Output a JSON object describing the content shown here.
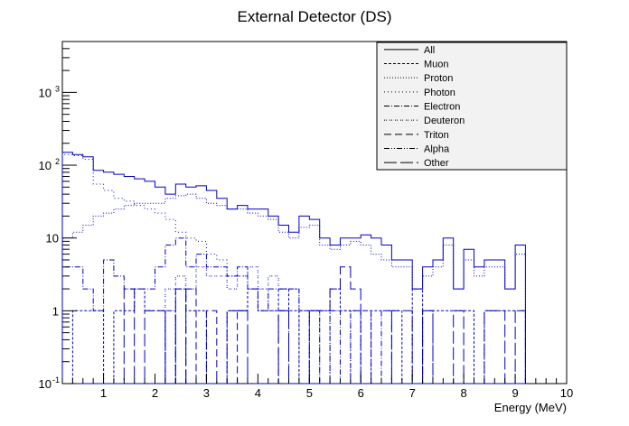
{
  "chart_data": {
    "type": "histogram-step",
    "title": "External Detector (DS)",
    "xlabel": "Energy (MeV)",
    "ylabel": "",
    "xlim": [
      0.2,
      10.0
    ],
    "ylim": [
      0.1,
      5000
    ],
    "yscale": "log",
    "bin_width": 0.2,
    "x_ticks": [
      "1",
      "2",
      "3",
      "4",
      "5",
      "6",
      "7",
      "8",
      "9",
      "10"
    ],
    "y_ticks": [
      {
        "label": "10",
        "sup": "-1",
        "value": 0.1
      },
      {
        "label": "1",
        "sup": "",
        "value": 1
      },
      {
        "label": "10",
        "sup": "",
        "value": 10
      },
      {
        "label": "10",
        "sup": "2",
        "value": 100
      },
      {
        "label": "10",
        "sup": "3",
        "value": 1000
      }
    ],
    "legend_position": "top-right",
    "series": [
      {
        "name": "All",
        "color": "#0000cc",
        "dash": "",
        "values": [
          150,
          140,
          130,
          85,
          80,
          75,
          70,
          65,
          60,
          50,
          40,
          55,
          50,
          52,
          45,
          35,
          25,
          28,
          25,
          25,
          20,
          15,
          12,
          20,
          18,
          10,
          8,
          10,
          10,
          11,
          10,
          8,
          5,
          5,
          2,
          4,
          5,
          10,
          2,
          7,
          4,
          5,
          5,
          2,
          8
        ]
      },
      {
        "name": "Muon",
        "color": "#0000cc",
        "dash": "3,2",
        "values": [
          0.1,
          1,
          1,
          1,
          0.1,
          1,
          1,
          2,
          1,
          1,
          0.1,
          2,
          1,
          1,
          0.1,
          0.1,
          1,
          1,
          2,
          1,
          1,
          2,
          1,
          0.1,
          1,
          1,
          2,
          1,
          1,
          0.1,
          1,
          1,
          1,
          0.1,
          2,
          0.1,
          1,
          1,
          1,
          1,
          0.1,
          1,
          1,
          1,
          1
        ]
      },
      {
        "name": "Proton",
        "color": "#0000cc",
        "dash": "1,2",
        "values": [
          10,
          12,
          15,
          20,
          22,
          25,
          28,
          30,
          30,
          30,
          35,
          38,
          40,
          35,
          30,
          28,
          25,
          25,
          22,
          20,
          18,
          12,
          10,
          14,
          15,
          8,
          7,
          8,
          9,
          8,
          6,
          5,
          4,
          4,
          2,
          3,
          4,
          8,
          2,
          5,
          3,
          4,
          4,
          2,
          6
        ]
      },
      {
        "name": "Photon",
        "color": "#0000cc",
        "dash": "1,3",
        "values": [
          140,
          135,
          120,
          55,
          45,
          35,
          32,
          28,
          25,
          22,
          18,
          12,
          10,
          9,
          6,
          5,
          3,
          3,
          2,
          2,
          1,
          1,
          0.1,
          1,
          0.1,
          0.1,
          0.1,
          0.1,
          0.1,
          0.1,
          0.1,
          0.1,
          0.1,
          0.1,
          0.1,
          0.1,
          0.1,
          0.1,
          0.1,
          0.1,
          0.1,
          0.1,
          0.1,
          0.1,
          0.1
        ]
      },
      {
        "name": "Electron",
        "color": "#0000cc",
        "dash": "6,2,1,2",
        "values": [
          4,
          4,
          2,
          1,
          5,
          3,
          2,
          2,
          2,
          4,
          8,
          10,
          4,
          6,
          4,
          4,
          3,
          4,
          2,
          1,
          2,
          2,
          2,
          1,
          1,
          0.1,
          1,
          0.1,
          1,
          1,
          0.1,
          1,
          0.1,
          0.1,
          0.1,
          1,
          0.1,
          0.1,
          0.1,
          0.1,
          0.1,
          0.1,
          0.1,
          0.1,
          0.1
        ]
      },
      {
        "name": "Deuteron",
        "color": "#0000cc",
        "dash": "1,1,1,3",
        "values": [
          0.1,
          0.1,
          0.1,
          0.1,
          0.1,
          0.1,
          0.1,
          0.1,
          0.1,
          0.1,
          2,
          3,
          2,
          4,
          3,
          3,
          2,
          3,
          4,
          2,
          3,
          2,
          2,
          1,
          1,
          0.1,
          1,
          1,
          0.1,
          0.1,
          0.1,
          0.1,
          0.1,
          0.1,
          0.1,
          0.1,
          0.1,
          0.1,
          0.1,
          0.1,
          0.1,
          0.1,
          0.1,
          0.1,
          0.1
        ]
      },
      {
        "name": "Triton",
        "color": "#0000cc",
        "dash": "8,4",
        "values": [
          0.1,
          0.1,
          0.1,
          0.1,
          0.1,
          0.1,
          0.1,
          0.1,
          0.1,
          0.1,
          0.1,
          0.1,
          2,
          0.1,
          1,
          0.1,
          0.1,
          1,
          0.1,
          0.1,
          0.1,
          1,
          0.1,
          0.1,
          0.1,
          0.1,
          0.1,
          0.1,
          0.1,
          0.1,
          0.1,
          0.1,
          0.1,
          0.1,
          0.1,
          0.1,
          0.1,
          0.1,
          0.1,
          0.1,
          0.1,
          0.1,
          0.1,
          0.1,
          0.1
        ]
      },
      {
        "name": "Alpha",
        "color": "#0000cc",
        "dash": "6,2,1,2,1,2",
        "values": [
          0.1,
          0.1,
          0.1,
          0.1,
          0.1,
          0.1,
          0.1,
          0.1,
          0.1,
          0.1,
          1,
          0.1,
          0.1,
          0.1,
          0.1,
          0.1,
          0.1,
          0.1,
          0.1,
          0.1,
          0.1,
          0.1,
          0.1,
          0.1,
          0.1,
          0.1,
          0.1,
          0.1,
          0.1,
          0.1,
          0.1,
          0.1,
          0.1,
          0.1,
          0.1,
          0.1,
          0.1,
          0.1,
          0.1,
          0.1,
          0.1,
          0.1,
          0.1,
          0.1,
          0.1
        ]
      },
      {
        "name": "Other",
        "color": "#0000cc",
        "dash": "14,4",
        "values": [
          0.1,
          0.1,
          0.1,
          0.1,
          0.1,
          0.1,
          2,
          0.1,
          1,
          1,
          0.1,
          2,
          0.1,
          0.1,
          0.1,
          0.1,
          1,
          1,
          0.1,
          0.1,
          0.1,
          1,
          0.1,
          0.1,
          1,
          1,
          2,
          4,
          2,
          0.1,
          0.1,
          0.1,
          1,
          1,
          0.1,
          1,
          0.1,
          0.1,
          1,
          0.1,
          0.1,
          1,
          1,
          0.1,
          1
        ]
      }
    ]
  }
}
